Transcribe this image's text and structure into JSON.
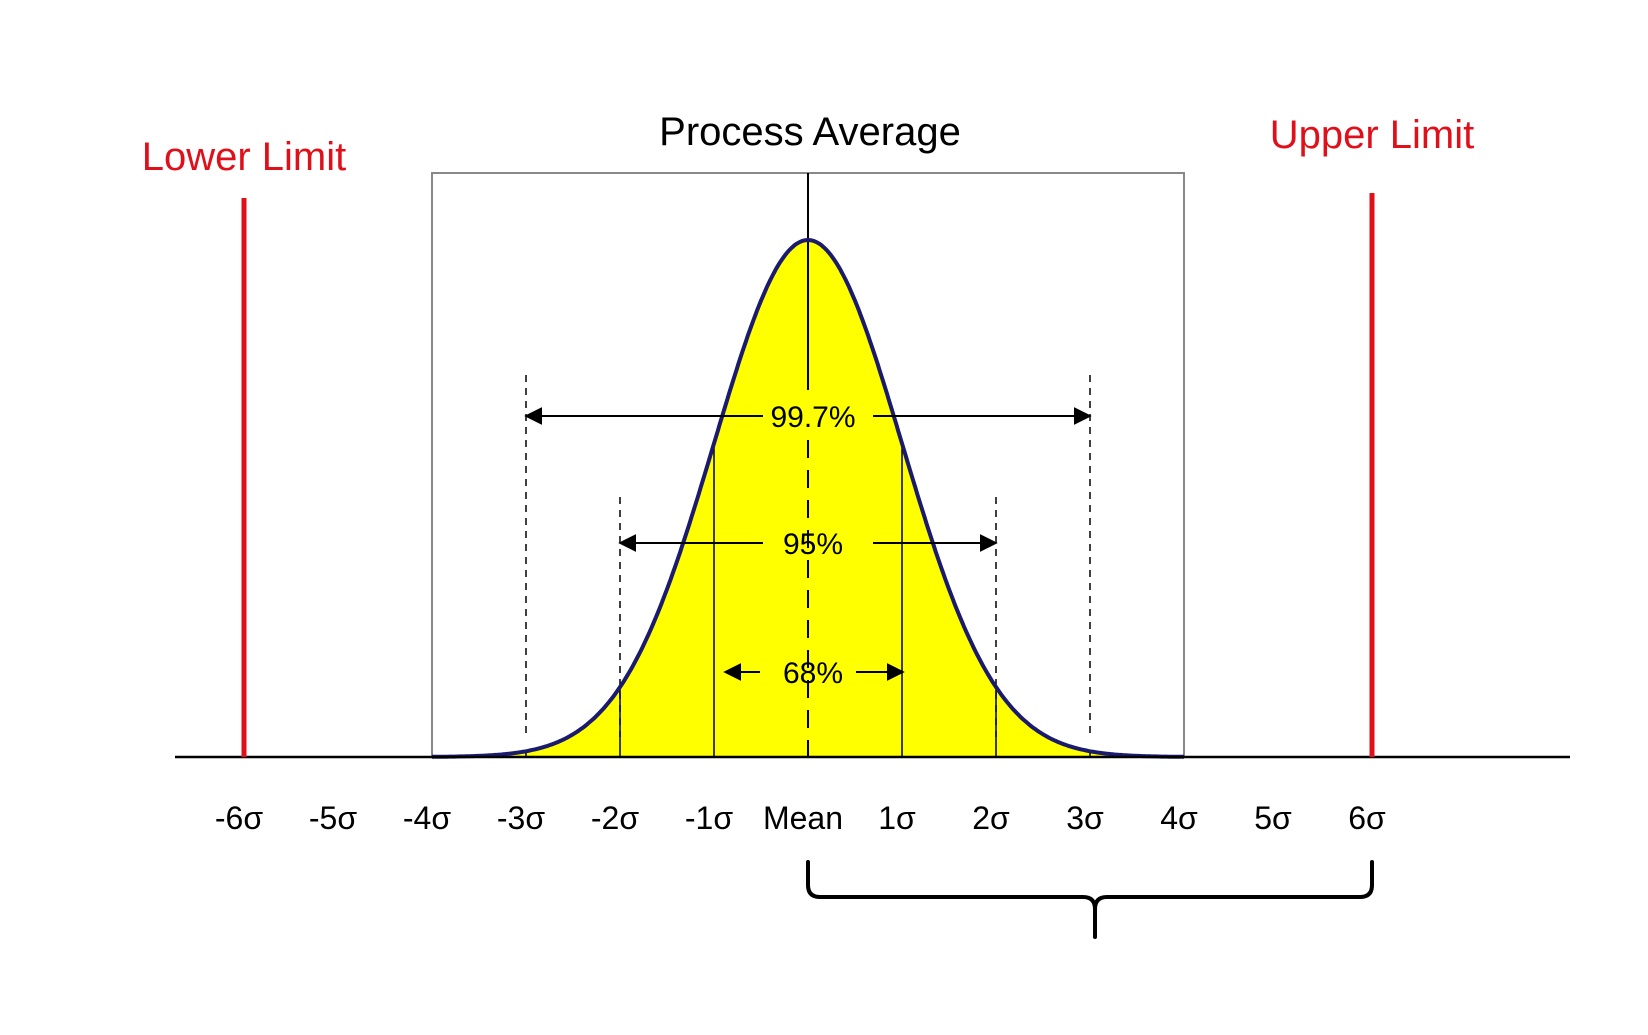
{
  "chart_data": {
    "type": "area",
    "title": "Process Average",
    "x_ticks": [
      "-6σ",
      "-5σ",
      "-4σ",
      "-3σ",
      "-2σ",
      "-1σ",
      "Mean",
      "1σ",
      "2σ",
      "3σ",
      "4σ",
      "5σ",
      "6σ"
    ],
    "tick_values": [
      -6,
      -5,
      -4,
      -3,
      -2,
      -1,
      0,
      1,
      2,
      3,
      4,
      5,
      6
    ],
    "xlim": [
      -6,
      6
    ],
    "curve": {
      "distribution": "normal",
      "mean": 0,
      "sd": 1,
      "plot_range": [
        -4,
        4
      ],
      "fill_color": "#ffff00",
      "line_color": "#1a1a6e"
    },
    "sigma_lines": [
      -3,
      -2,
      -1,
      1,
      2,
      3
    ],
    "bands": [
      {
        "label": "99.7%",
        "from": -3,
        "to": 3
      },
      {
        "label": "95%",
        "from": -2,
        "to": 2
      },
      {
        "label": "68%",
        "from": -1,
        "to": 1
      }
    ],
    "limits": [
      {
        "label": "Lower Limit",
        "x": -6,
        "color": "#e0101a"
      },
      {
        "label": "Upper Limit",
        "x": 6,
        "color": "#e0101a"
      }
    ],
    "brace": {
      "from": 0,
      "to": 6
    }
  }
}
